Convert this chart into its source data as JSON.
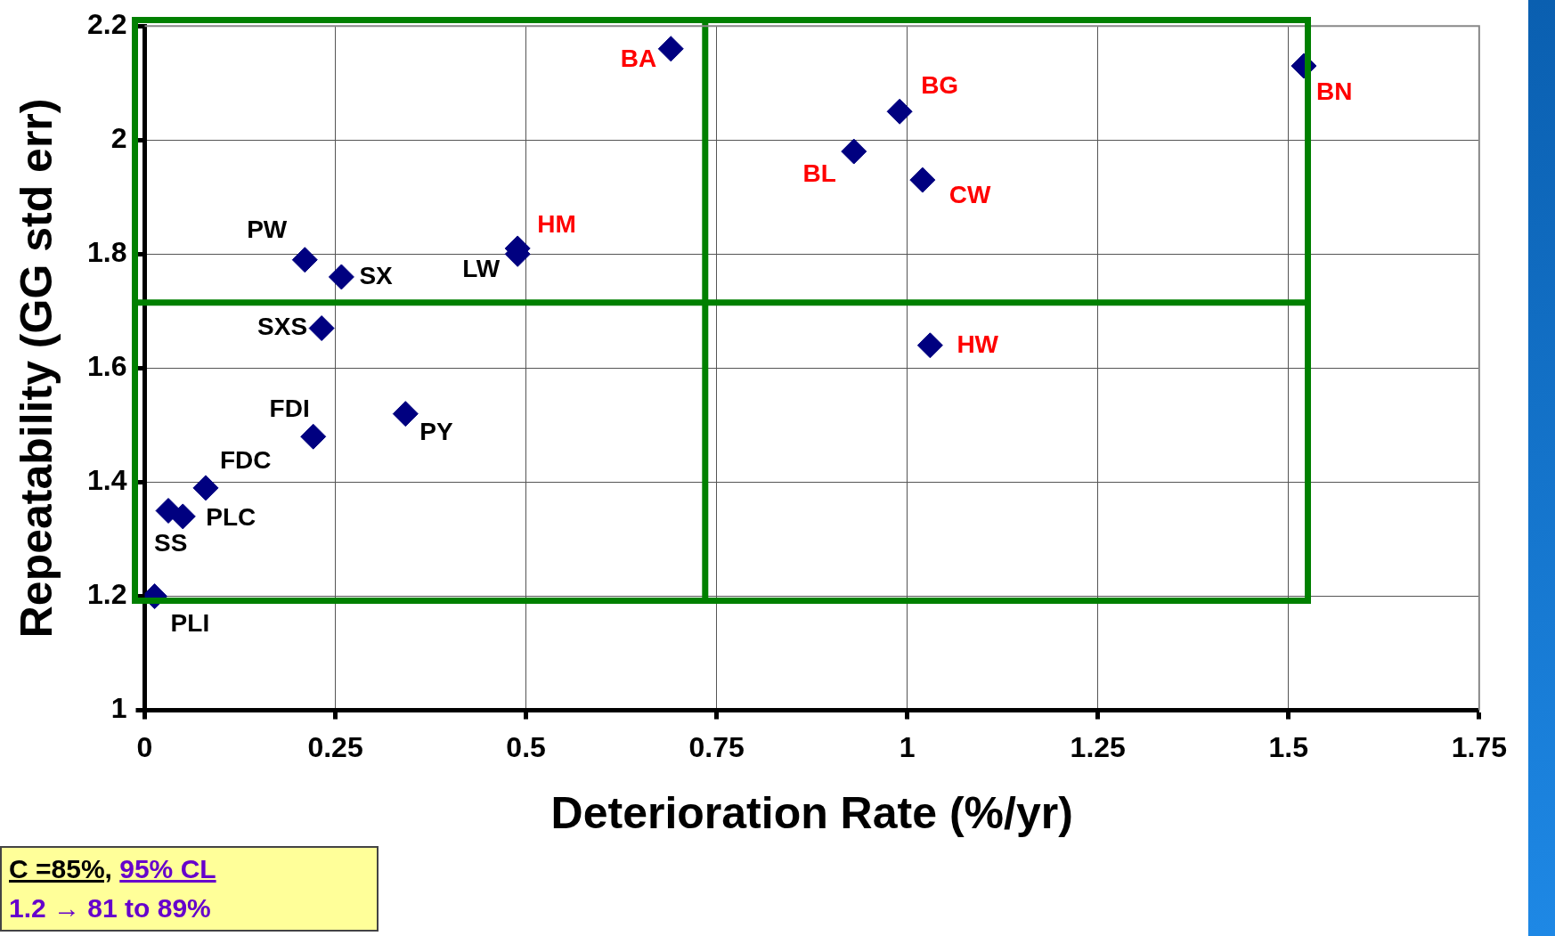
{
  "chart_data": {
    "type": "scatter",
    "xlabel": "Deterioration Rate (%/yr)",
    "ylabel": "Repeatability (GG std err)",
    "series": [
      {
        "color": "#000080",
        "x": [
          0.21,
          0.258,
          0.489,
          0.232,
          0.221,
          0.342,
          0.08,
          0.031,
          0.05,
          0.013
        ],
        "values": [
          1.79,
          1.76,
          1.8,
          1.67,
          1.48,
          1.52,
          1.39,
          1.35,
          1.34,
          1.2
        ]
      },
      {
        "color": "#000080",
        "x": [
          0.69,
          0.489,
          0.99,
          0.93,
          1.02,
          1.03,
          1.52
        ],
        "values": [
          2.16,
          1.81,
          2.05,
          1.98,
          1.93,
          1.64,
          2.13
        ]
      }
    ],
    "marker": "diamond",
    "grid": true,
    "legend": false,
    "xlim": [
      0,
      1.75
    ],
    "xticks": [
      0,
      0.25,
      0.5,
      0.75,
      1,
      1.25,
      1.5,
      1.75
    ],
    "ylim": [
      1,
      2.2
    ],
    "yticks": [
      1,
      1.2,
      1.4,
      1.6,
      1.8,
      2,
      2.2
    ],
    "ref_lines": [
      {
        "axis": "x",
        "value": 0.735,
        "color": "#008000"
      },
      {
        "axis": "y",
        "value": 1.715,
        "color": "#008000"
      }
    ],
    "annotations": [
      {
        "text": "PW",
        "x": 0.21,
        "y": 1.79
      },
      {
        "text": "SX",
        "x": 0.258,
        "y": 1.76
      },
      {
        "text": "LW",
        "x": 0.489,
        "y": 1.8
      },
      {
        "text": "SXS",
        "x": 0.232,
        "y": 1.67
      },
      {
        "text": "FDI",
        "x": 0.221,
        "y": 1.48
      },
      {
        "text": "PY",
        "x": 0.342,
        "y": 1.52
      },
      {
        "text": "FDC",
        "x": 0.08,
        "y": 1.39
      },
      {
        "text": "SS",
        "x": 0.031,
        "y": 1.35
      },
      {
        "text": "PLC",
        "x": 0.05,
        "y": 1.34
      },
      {
        "text": "PLI",
        "x": 0.013,
        "y": 1.2
      },
      {
        "text": "BA",
        "x": 0.69,
        "y": 2.16
      },
      {
        "text": "HM",
        "x": 0.489,
        "y": 1.81
      },
      {
        "text": "BG",
        "x": 0.99,
        "y": 2.05
      },
      {
        "text": "BL",
        "x": 0.93,
        "y": 1.98
      },
      {
        "text": "CW",
        "x": 1.02,
        "y": 1.93
      },
      {
        "text": "HW",
        "x": 1.03,
        "y": 1.64
      },
      {
        "text": "BN",
        "x": 1.52,
        "y": 2.13
      },
      "C =85%, 95% CL",
      "1.2 → 81 to 89%"
    ]
  }
}
